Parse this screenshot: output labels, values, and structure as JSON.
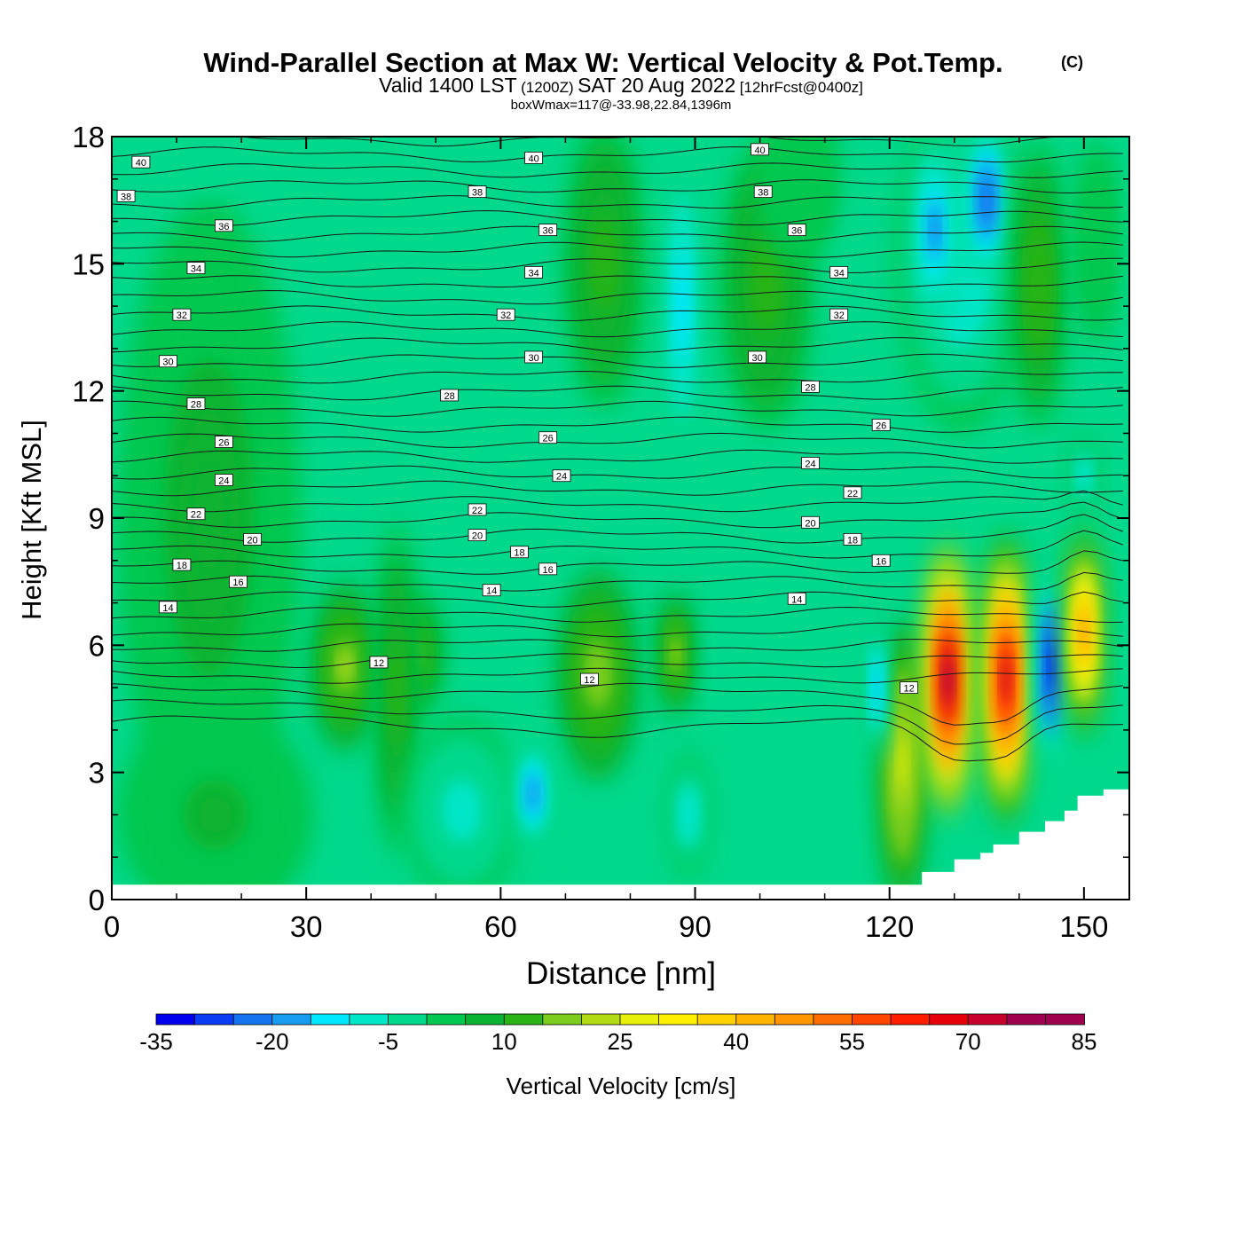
{
  "chart_data": {
    "type": "heatmap",
    "title": "Wind-Parallel Section at Max W: Vertical Velocity & Pot.Temp.",
    "title_mark": "(C)",
    "subtitle": {
      "prefix": "Valid 1400 LST",
      "utc": "(1200Z)",
      "date": "SAT 20 Aug 2022",
      "forecast": "[12hrFcst@0400z]"
    },
    "subtitle2": "boxWmax=117@-33.98,22.84,1396m",
    "xlabel": "Distance [nm]",
    "ylabel": "Height [Kft MSL]",
    "xlim": [
      0,
      157
    ],
    "ylim": [
      0,
      18
    ],
    "xticks": [
      0,
      30,
      60,
      90,
      120,
      150
    ],
    "yticks": [
      0,
      3,
      6,
      9,
      12,
      15,
      18
    ],
    "colorbar": {
      "label": "Vertical Velocity [cm/s]",
      "levels": [
        -35,
        -30,
        -25,
        -20,
        -15,
        -10,
        -5,
        0,
        5,
        10,
        15,
        20,
        25,
        30,
        35,
        40,
        45,
        50,
        55,
        60,
        65,
        70,
        75,
        80,
        85
      ],
      "tick_labels": [
        "-35",
        "-20",
        "-5",
        "10",
        "25",
        "40",
        "55",
        "70",
        "85"
      ],
      "colors": [
        "#0000ee",
        "#0a3cf5",
        "#1473f0",
        "#189cf0",
        "#00e8ff",
        "#00e6c8",
        "#00d88c",
        "#00c850",
        "#0ab432",
        "#28b414",
        "#7ccd1e",
        "#b4dc14",
        "#e6f00a",
        "#fff000",
        "#ffd200",
        "#ffb400",
        "#ff9600",
        "#ff6e00",
        "#ff4600",
        "#ff1e00",
        "#e6000a",
        "#c8002d",
        "#a00050",
        "#a00050"
      ]
    },
    "wind_field": {
      "background": "#00d88c",
      "cells": [
        {
          "x": 15,
          "y": 9,
          "xr": 14,
          "yr": 7.5,
          "w": 7
        },
        {
          "x": 16,
          "y": 2,
          "xr": 15,
          "yr": 2.5,
          "w": 6
        },
        {
          "x": 36,
          "y": 5.5,
          "xr": 5,
          "yr": 2.0,
          "w": 20
        },
        {
          "x": 47,
          "y": 5.8,
          "xr": 4,
          "yr": 1.5,
          "w": 17
        },
        {
          "x": 44,
          "y": 5,
          "xr": 3,
          "yr": 4,
          "w": 12
        },
        {
          "x": 75,
          "y": 5.3,
          "xr": 6,
          "yr": 2.5,
          "w": 18
        },
        {
          "x": 87,
          "y": 5.8,
          "xr": 2.5,
          "yr": 1.5,
          "w": 20
        },
        {
          "x": 54,
          "y": 2.1,
          "xr": 9,
          "yr": 2.2,
          "w": -8
        },
        {
          "x": 65,
          "y": 2.5,
          "xr": 3,
          "yr": 1.5,
          "w": -20
        },
        {
          "x": 89,
          "y": 2,
          "xr": 3,
          "yr": 1.5,
          "w": -9
        },
        {
          "x": 88,
          "y": 14,
          "xr": 3,
          "yr": 4,
          "w": -15
        },
        {
          "x": 76,
          "y": 15,
          "xr": 6,
          "yr": 3.5,
          "w": 12
        },
        {
          "x": 101,
          "y": 14.5,
          "xr": 7,
          "yr": 3.5,
          "w": 13
        },
        {
          "x": 106,
          "y": 17,
          "xr": 6,
          "yr": 2.0,
          "w": 3
        },
        {
          "x": 131,
          "y": 15,
          "xr": 10,
          "yr": 4,
          "w": -10
        },
        {
          "x": 127,
          "y": 15.8,
          "xr": 3,
          "yr": 2.3,
          "w": -22
        },
        {
          "x": 135,
          "y": 16.5,
          "xr": 3,
          "yr": 2.0,
          "w": -25
        },
        {
          "x": 143,
          "y": 14.5,
          "xr": 4,
          "yr": 3.5,
          "w": 14
        },
        {
          "x": 152,
          "y": 15.5,
          "xr": 3,
          "yr": 2.5,
          "w": 4
        },
        {
          "x": 150,
          "y": 10,
          "xr": 2,
          "yr": 1,
          "w": -10
        },
        {
          "x": 122,
          "y": 3.2,
          "xr": 3.5,
          "yr": 3.5,
          "w": 28
        },
        {
          "x": 129,
          "y": 5.2,
          "xr": 3.8,
          "yr": 3.3,
          "w": 78
        },
        {
          "x": 138,
          "y": 5.2,
          "xr": 3.8,
          "yr": 3.5,
          "w": 72
        },
        {
          "x": 145,
          "y": 5.5,
          "xr": 2.2,
          "yr": 2.5,
          "w": -33
        },
        {
          "x": 150,
          "y": 6.3,
          "xr": 2.8,
          "yr": 2.5,
          "w": 48
        },
        {
          "x": 118,
          "y": 5,
          "xr": 1.5,
          "yr": 1.8,
          "w": -18
        }
      ]
    },
    "terrain": {
      "x": [
        0,
        125,
        125,
        130,
        130,
        134,
        134,
        136,
        136,
        140,
        140,
        144,
        144,
        147,
        147,
        149,
        149,
        153,
        153,
        157
      ],
      "y": [
        0.35,
        0.35,
        0.65,
        0.65,
        0.95,
        0.95,
        1.1,
        1.1,
        1.3,
        1.3,
        1.6,
        1.6,
        1.85,
        1.85,
        2.1,
        2.1,
        2.45,
        2.45,
        2.6,
        2.6
      ]
    },
    "theta_labels": [
      {
        "text": "40",
        "x": 4.5,
        "y": 17.4
      },
      {
        "text": "38",
        "x": 2.2,
        "y": 16.6
      },
      {
        "text": "36",
        "x": 17.3,
        "y": 15.9
      },
      {
        "text": "34",
        "x": 13,
        "y": 14.9
      },
      {
        "text": "32",
        "x": 10.8,
        "y": 13.8
      },
      {
        "text": "30",
        "x": 8.7,
        "y": 12.7
      },
      {
        "text": "28",
        "x": 13,
        "y": 11.7
      },
      {
        "text": "26",
        "x": 17.3,
        "y": 10.8
      },
      {
        "text": "24",
        "x": 17.3,
        "y": 9.9
      },
      {
        "text": "22",
        "x": 13,
        "y": 9.1
      },
      {
        "text": "20",
        "x": 21.7,
        "y": 8.5
      },
      {
        "text": "18",
        "x": 10.8,
        "y": 7.9
      },
      {
        "text": "16",
        "x": 19.5,
        "y": 7.5
      },
      {
        "text": "14",
        "x": 8.7,
        "y": 6.9
      },
      {
        "text": "40",
        "x": 65.1,
        "y": 17.5
      },
      {
        "text": "38",
        "x": 56.4,
        "y": 16.7
      },
      {
        "text": "36",
        "x": 67.3,
        "y": 15.8
      },
      {
        "text": "34",
        "x": 65.1,
        "y": 14.8
      },
      {
        "text": "32",
        "x": 60.8,
        "y": 13.8
      },
      {
        "text": "30",
        "x": 65.1,
        "y": 12.8
      },
      {
        "text": "28",
        "x": 52.1,
        "y": 11.9
      },
      {
        "text": "26",
        "x": 67.3,
        "y": 10.9
      },
      {
        "text": "24",
        "x": 69.4,
        "y": 10.0
      },
      {
        "text": "22",
        "x": 56.4,
        "y": 9.2
      },
      {
        "text": "20",
        "x": 56.4,
        "y": 8.6
      },
      {
        "text": "18",
        "x": 62.9,
        "y": 8.2
      },
      {
        "text": "16",
        "x": 67.3,
        "y": 7.8
      },
      {
        "text": "14",
        "x": 58.6,
        "y": 7.3
      },
      {
        "text": "12",
        "x": 41.2,
        "y": 5.6
      },
      {
        "text": "12",
        "x": 73.7,
        "y": 5.2
      },
      {
        "text": "40",
        "x": 100,
        "y": 17.7
      },
      {
        "text": "38",
        "x": 100.5,
        "y": 16.7
      },
      {
        "text": "36",
        "x": 105.7,
        "y": 15.8
      },
      {
        "text": "34",
        "x": 112.2,
        "y": 14.8
      },
      {
        "text": "32",
        "x": 112.2,
        "y": 13.8
      },
      {
        "text": "30",
        "x": 99.6,
        "y": 12.8
      },
      {
        "text": "28",
        "x": 107.8,
        "y": 12.1
      },
      {
        "text": "26",
        "x": 118.7,
        "y": 11.2
      },
      {
        "text": "24",
        "x": 107.8,
        "y": 10.3
      },
      {
        "text": "22",
        "x": 114.3,
        "y": 9.6
      },
      {
        "text": "20",
        "x": 107.8,
        "y": 8.9
      },
      {
        "text": "18",
        "x": 114.3,
        "y": 8.5
      },
      {
        "text": "16",
        "x": 118.7,
        "y": 8.0
      },
      {
        "text": "14",
        "x": 105.7,
        "y": 7.1
      },
      {
        "text": "12",
        "x": 123,
        "y": 5.0
      }
    ]
  }
}
